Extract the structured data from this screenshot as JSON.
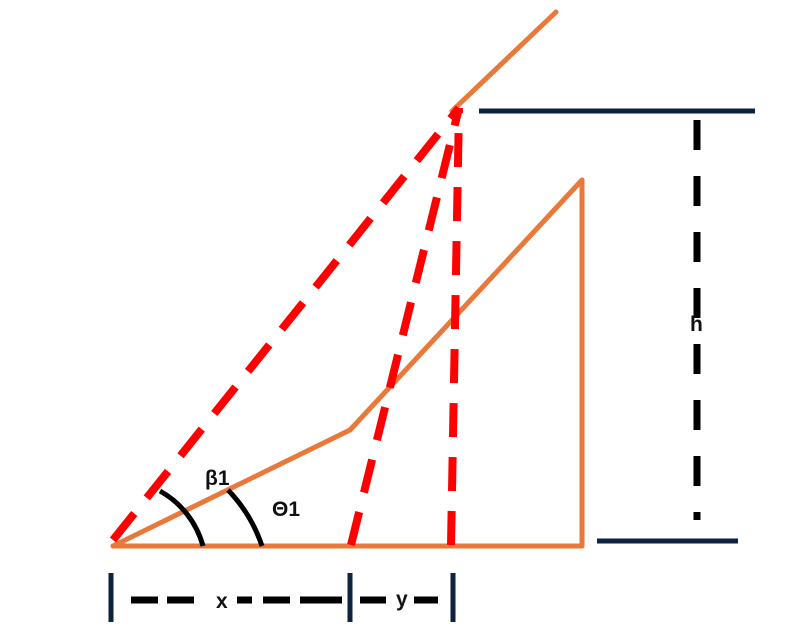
{
  "labels": {
    "beta": "β1",
    "theta": "Θ1",
    "x": "x",
    "y": "y",
    "h": "h"
  },
  "colors": {
    "structure": "#E8793A",
    "sightline": "#FF0000",
    "dimension": "#0D2340",
    "arc": "#000000"
  }
}
